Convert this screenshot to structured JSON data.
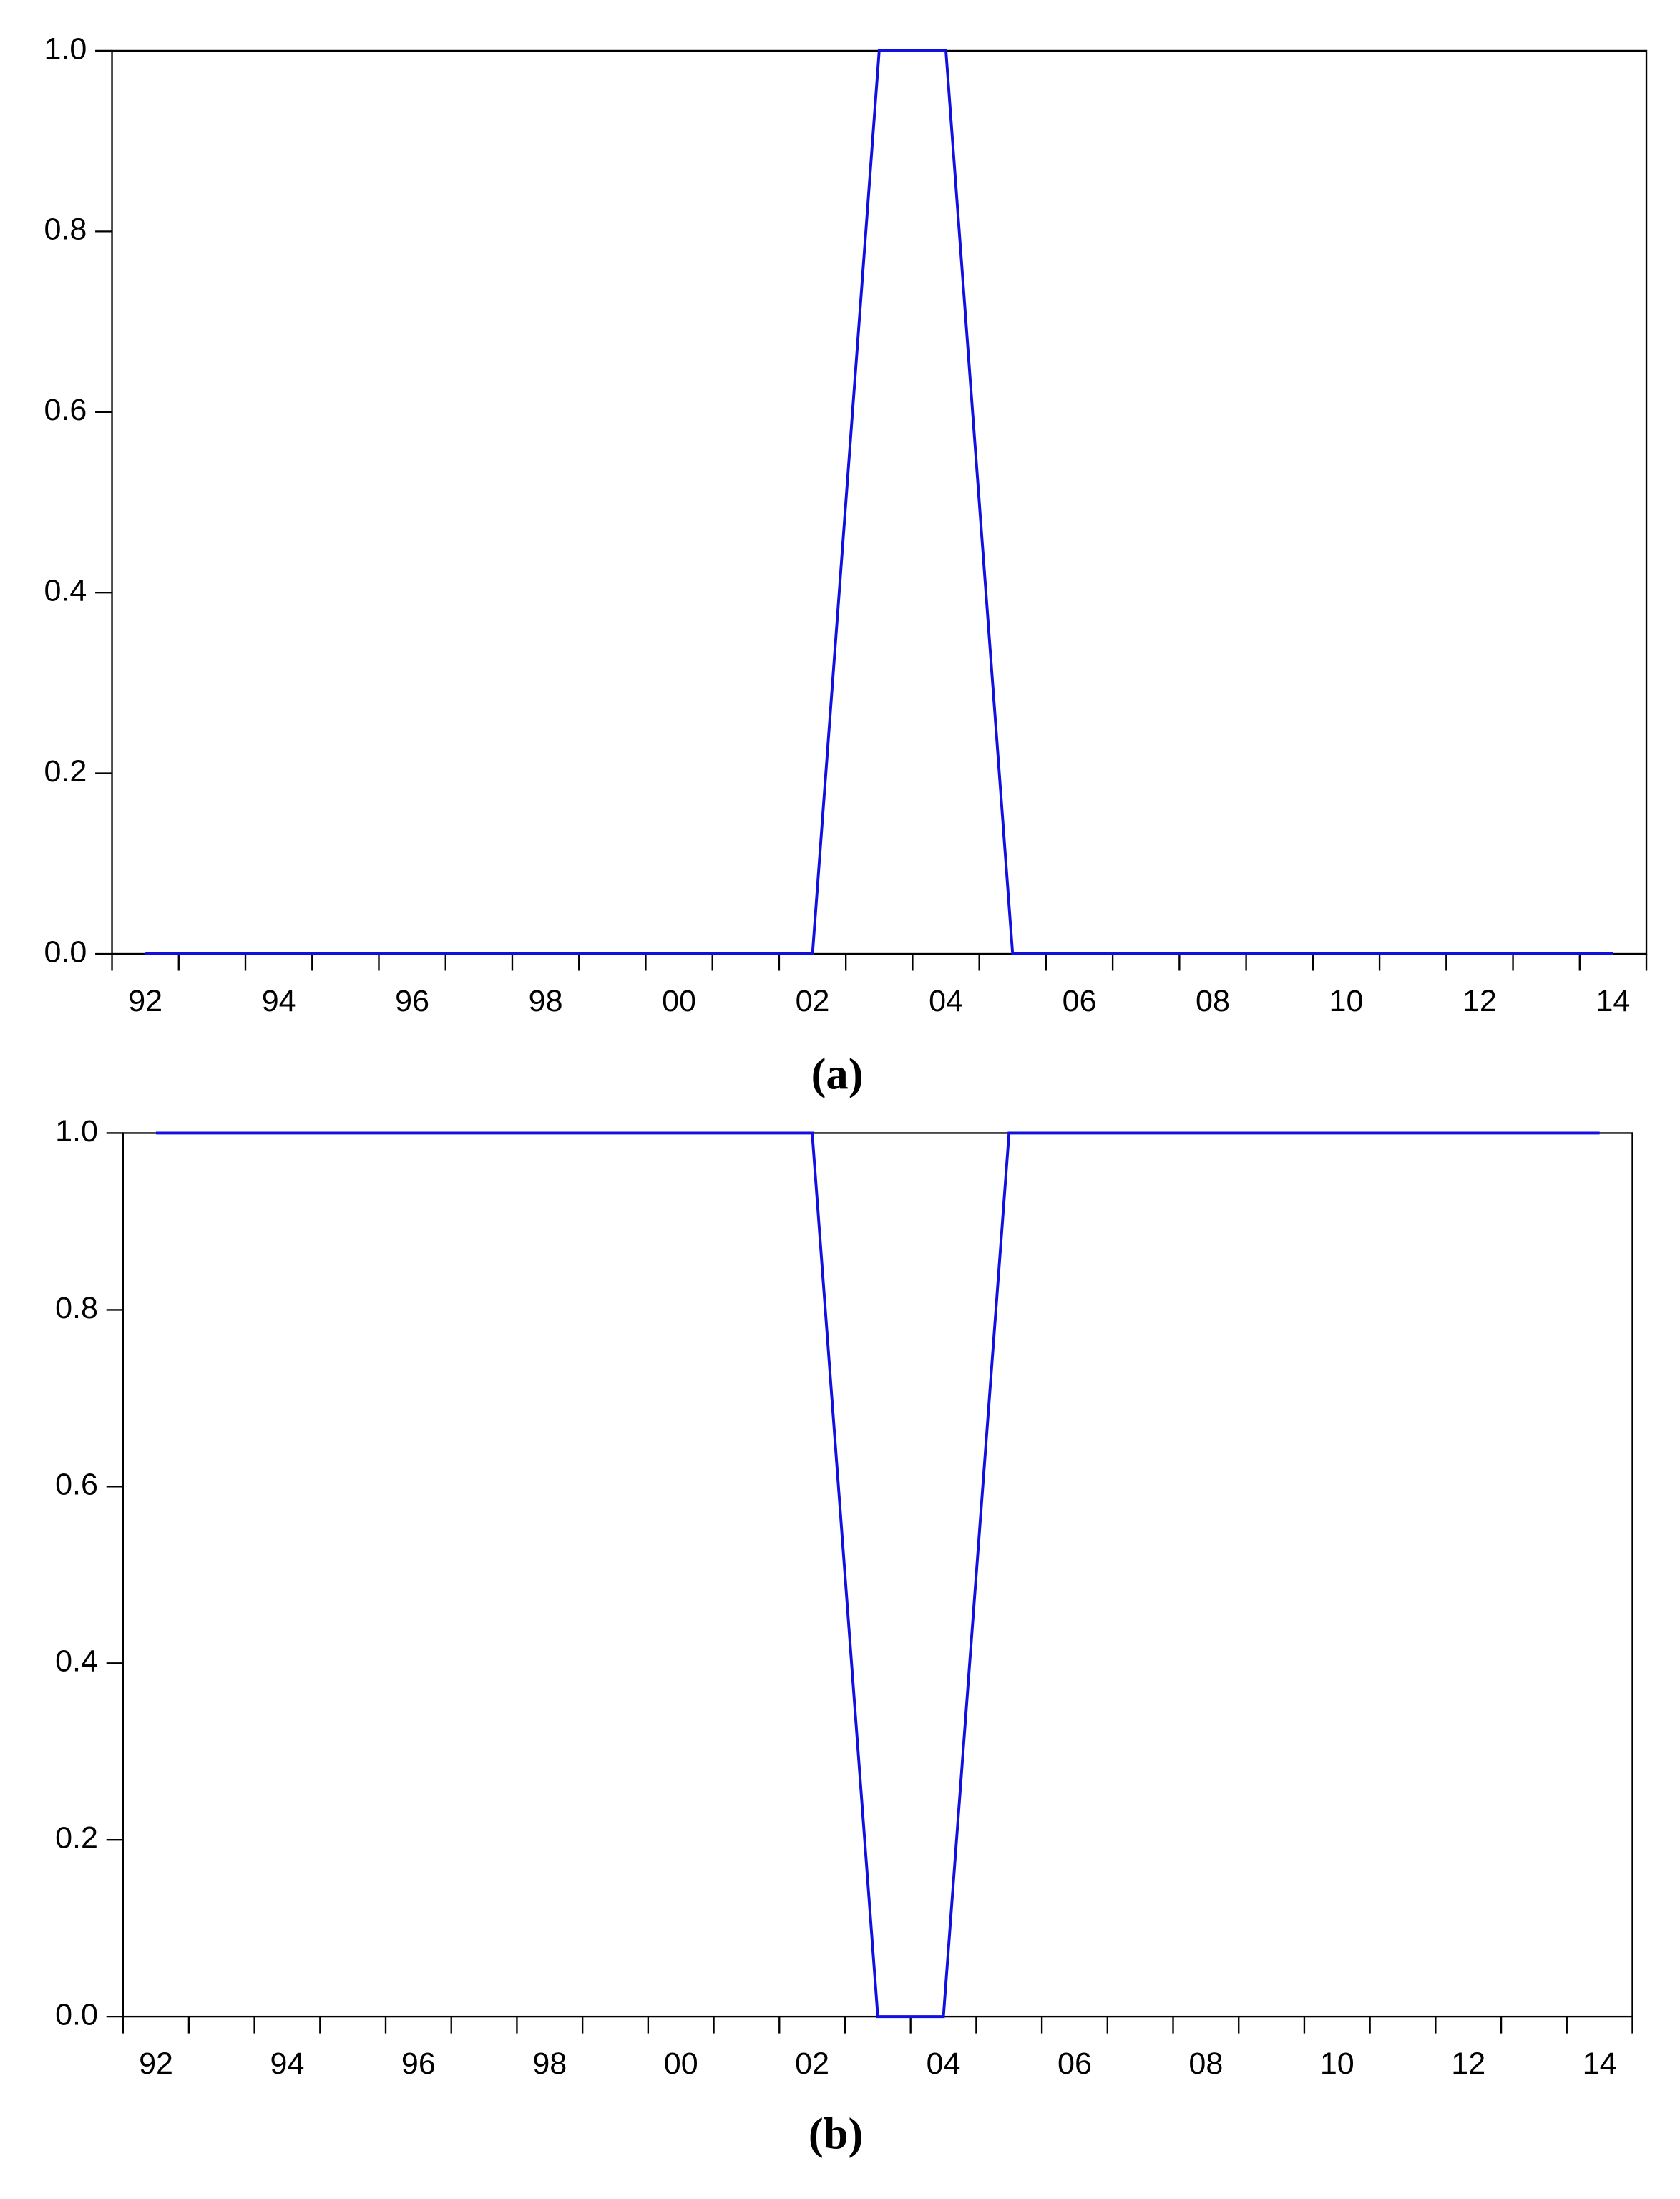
{
  "chart_data": [
    {
      "type": "line",
      "caption": "(a)",
      "categories": [
        "92",
        null,
        "94",
        null,
        "96",
        null,
        "98",
        null,
        "00",
        null,
        "02",
        null,
        "04",
        null,
        "06",
        null,
        "08",
        null,
        "10",
        null,
        "12",
        null,
        "14"
      ],
      "series": [
        {
          "color": "#1010e0",
          "values": [
            0,
            0,
            0,
            0,
            0,
            0,
            0,
            0,
            0,
            0,
            0,
            1,
            1,
            0,
            0,
            0,
            0,
            0,
            0,
            0,
            0,
            0,
            0
          ]
        }
      ],
      "ylim": [
        0,
        1
      ],
      "yticks": [
        {
          "value": 0,
          "label": "0.0"
        },
        0.2,
        0.4,
        0.6,
        0.8,
        {
          "value": 1,
          "label": "1.0"
        }
      ]
    },
    {
      "type": "line",
      "caption": "(b)",
      "categories": [
        "92",
        null,
        "94",
        null,
        "96",
        null,
        "98",
        null,
        "00",
        null,
        "02",
        null,
        "04",
        null,
        "06",
        null,
        "08",
        null,
        "10",
        null,
        "12",
        null,
        "14"
      ],
      "series": [
        {
          "color": "#1010e0",
          "values": [
            1,
            1,
            1,
            1,
            1,
            1,
            1,
            1,
            1,
            1,
            1,
            0,
            0,
            1,
            1,
            1,
            1,
            1,
            1,
            1,
            1,
            1,
            1
          ]
        }
      ],
      "ylim": [
        0,
        1
      ],
      "yticks": [
        {
          "value": 0,
          "label": "0.0"
        },
        0.2,
        0.4,
        0.6,
        0.8,
        {
          "value": 1,
          "label": "1.0"
        }
      ]
    }
  ]
}
